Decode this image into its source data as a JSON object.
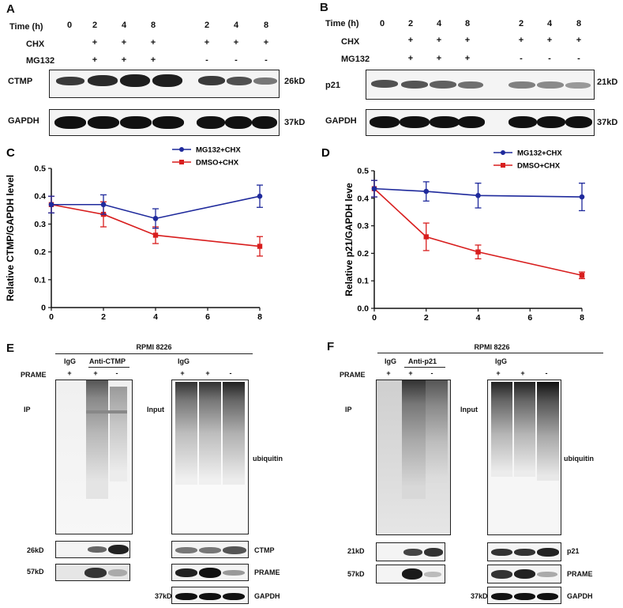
{
  "panels": {
    "A": {
      "letter": "A",
      "row_time": "Time (h)",
      "row_chx": "CHX",
      "row_mg": "MG132",
      "times": [
        "0",
        "2",
        "4",
        "8",
        "2",
        "4",
        "8"
      ],
      "chx": [
        "+",
        "+",
        "+",
        "+",
        "+",
        "+"
      ],
      "mg": [
        "+",
        "+",
        "+",
        "-",
        "-",
        "-"
      ],
      "blot1_label": "CTMP",
      "blot1_size": "26kD",
      "blot2_label": "GAPDH",
      "blot2_size": "37kD"
    },
    "B": {
      "letter": "B",
      "row_time": "Time (h)",
      "row_chx": "CHX",
      "row_mg": "MG132",
      "times": [
        "0",
        "2",
        "4",
        "8",
        "2",
        "4",
        "8"
      ],
      "chx": [
        "+",
        "+",
        "+",
        "+",
        "+",
        "+"
      ],
      "mg": [
        "+",
        "+",
        "+",
        "-",
        "-",
        "-"
      ],
      "blot1_label": "p21",
      "blot1_size": "21kD",
      "blot2_label": "GAPDH",
      "blot2_size": "37kD"
    },
    "E": {
      "letter": "E",
      "cell_line": "RPMI 8226",
      "igg": "IgG",
      "anti": "Anti-CTMP",
      "prame": "PRAME",
      "ip_signs": [
        "+",
        "+",
        "-"
      ],
      "in_igg": "IgG",
      "in_signs": [
        "+",
        "+",
        "-"
      ],
      "ip": "IP",
      "input": "Input",
      "ubiquitin": "ubiquitin",
      "size_a": "26kD",
      "size_b": "57kD",
      "size_c": "37kD",
      "blot_a": "CTMP",
      "blot_b": "PRAME",
      "blot_c": "GAPDH"
    },
    "F": {
      "letter": "F",
      "cell_line": "RPMI 8226",
      "igg": "IgG",
      "anti": "Anti-p21",
      "prame": "PRAME",
      "ip_signs": [
        "+",
        "+",
        "-"
      ],
      "in_igg": "IgG",
      "in_signs": [
        "+",
        "+",
        "-"
      ],
      "ip": "IP",
      "input": "Input",
      "ubiquitin": "ubiquitin",
      "size_a": "21kD",
      "size_b": "57kD",
      "size_c": "37kD",
      "blot_a": "p21",
      "blot_b": "PRAME",
      "blot_c": "GAPDH"
    }
  },
  "chart_data": [
    {
      "panel": "C",
      "type": "line",
      "xlabel": "Time (h)",
      "ylabel": "Relative CTMP/GAPDH level",
      "xlim": [
        0,
        8
      ],
      "ylim": [
        0,
        0.5
      ],
      "xticks": [
        "0",
        "2",
        "4",
        "6",
        "8"
      ],
      "yticks": [
        "0",
        "0.1",
        "0.2",
        "0.3",
        "0.4",
        "0.5"
      ],
      "x": [
        0,
        2,
        4,
        8
      ],
      "series": [
        {
          "name": "MG132+CHX",
          "color": "#1f2a9c",
          "marker": "circle",
          "values": [
            0.37,
            0.37,
            0.32,
            0.4
          ],
          "err": [
            0.03,
            0.035,
            0.035,
            0.04
          ]
        },
        {
          "name": "DMSO+CHX",
          "color": "#d81e1e",
          "marker": "square",
          "values": [
            0.37,
            0.335,
            0.26,
            0.22
          ],
          "err": [
            0.03,
            0.045,
            0.03,
            0.035
          ]
        }
      ],
      "legend": "top-right"
    },
    {
      "panel": "D",
      "type": "line",
      "xlabel": "Time (h)",
      "ylabel": "Relative p21/GAPDH leve",
      "xlim": [
        0,
        8
      ],
      "ylim": [
        0,
        0.5
      ],
      "xticks": [
        "0",
        "2",
        "4",
        "6",
        "8"
      ],
      "yticks": [
        "0.0",
        "0.1",
        "0.2",
        "0.3",
        "0.4",
        "0.5"
      ],
      "x": [
        0,
        2,
        4,
        8
      ],
      "series": [
        {
          "name": "MG132+CHX",
          "color": "#1f2a9c",
          "marker": "circle",
          "values": [
            0.435,
            0.425,
            0.41,
            0.405
          ],
          "err": [
            0.03,
            0.035,
            0.045,
            0.05
          ]
        },
        {
          "name": "DMSO+CHX",
          "color": "#d81e1e",
          "marker": "square",
          "values": [
            0.435,
            0.26,
            0.205,
            0.12
          ],
          "err": [
            0.03,
            0.05,
            0.025,
            0.012
          ]
        }
      ],
      "legend": "top-right"
    }
  ]
}
